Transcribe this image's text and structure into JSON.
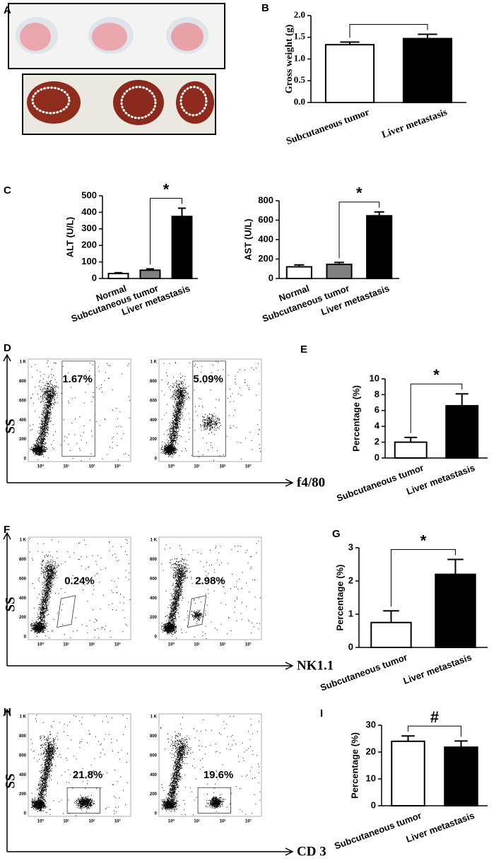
{
  "panel_letters": [
    "A",
    "B",
    "C",
    "D",
    "E",
    "F",
    "G",
    "H",
    "I"
  ],
  "flow_axis": {
    "y_tick_labels": [
      "1 K",
      "800",
      "600",
      "400",
      "200",
      "0"
    ],
    "x_tick_labels": [
      "10⁰",
      "10¹",
      "10²",
      "10³"
    ]
  },
  "flow_panels": [
    {
      "y_label": "SS",
      "x_label": "f4/80",
      "gates": [
        "1.67%",
        "5.09%"
      ]
    },
    {
      "y_label": "SS",
      "x_label": "NK1.1",
      "gates": [
        "0.24%",
        "2.98%"
      ]
    },
    {
      "y_label": "SS",
      "x_label": "CD 3",
      "gates": [
        "21.8%",
        "19.6%"
      ]
    }
  ],
  "chart_data": [
    {
      "type": "bar",
      "y_label": "Gross weight (g)",
      "categories": [
        "Subcutaneous tumor",
        "Liver metastasis"
      ],
      "values": [
        1.33,
        1.47
      ],
      "errors": [
        0.06,
        0.1
      ],
      "colors": [
        "#ffffff",
        "#000000"
      ],
      "ylim": [
        0,
        2
      ],
      "yticks": [
        {
          "value": 0,
          "label": "0.0"
        },
        0.5,
        {
          "value": 1,
          "label": "1.0"
        },
        1.5,
        {
          "value": 2,
          "label": "2.0"
        }
      ]
    },
    {
      "type": "bar",
      "y_label": "ALT (U/L)",
      "categories": [
        "Normal",
        "Subcutaneous tumor",
        "Liver metastasis"
      ],
      "values": [
        30,
        50,
        375
      ],
      "errors": [
        5,
        8,
        50
      ],
      "colors": [
        "#ffffff",
        "#808080",
        "#000000"
      ],
      "ylim": [
        0,
        500
      ],
      "yticks": [
        0,
        100,
        200,
        300,
        400,
        500
      ],
      "significance": "*"
    },
    {
      "type": "bar",
      "y_label": "AST (U/L)",
      "categories": [
        "Normal",
        "Subcutaneous tumor",
        "Liver metastasis"
      ],
      "values": [
        120,
        145,
        645
      ],
      "errors": [
        20,
        20,
        40
      ],
      "colors": [
        "#ffffff",
        "#808080",
        "#000000"
      ],
      "ylim": [
        0,
        800
      ],
      "yticks": [
        0,
        200,
        400,
        600,
        800
      ],
      "significance": "*"
    },
    {
      "type": "bar",
      "y_label": "Percentage (%)",
      "categories": [
        "Subcutaneous tumor",
        "Liver metastasis"
      ],
      "values": [
        2.0,
        6.6
      ],
      "errors": [
        0.6,
        1.5
      ],
      "colors": [
        "#ffffff",
        "#000000"
      ],
      "ylim": [
        0,
        10
      ],
      "yticks": [
        0,
        2,
        4,
        6,
        8,
        10
      ],
      "significance": "*"
    },
    {
      "type": "bar",
      "y_label": "Percentage (%)",
      "categories": [
        "Subcutaneous tumor",
        "Liver metastasis"
      ],
      "values": [
        0.75,
        2.2
      ],
      "errors": [
        0.35,
        0.45
      ],
      "colors": [
        "#ffffff",
        "#000000"
      ],
      "ylim": [
        0,
        3
      ],
      "yticks": [
        0,
        1,
        2,
        3
      ],
      "significance": "*"
    },
    {
      "type": "bar",
      "y_label": "Percentage (%)",
      "categories": [
        "Subcutaneous tumor",
        "Liver metastasis"
      ],
      "values": [
        24,
        21.8
      ],
      "errors": [
        2,
        2.3
      ],
      "colors": [
        "#ffffff",
        "#000000"
      ],
      "ylim": [
        0,
        30
      ],
      "yticks": [
        0,
        10,
        20,
        30
      ],
      "significance": "#"
    }
  ]
}
